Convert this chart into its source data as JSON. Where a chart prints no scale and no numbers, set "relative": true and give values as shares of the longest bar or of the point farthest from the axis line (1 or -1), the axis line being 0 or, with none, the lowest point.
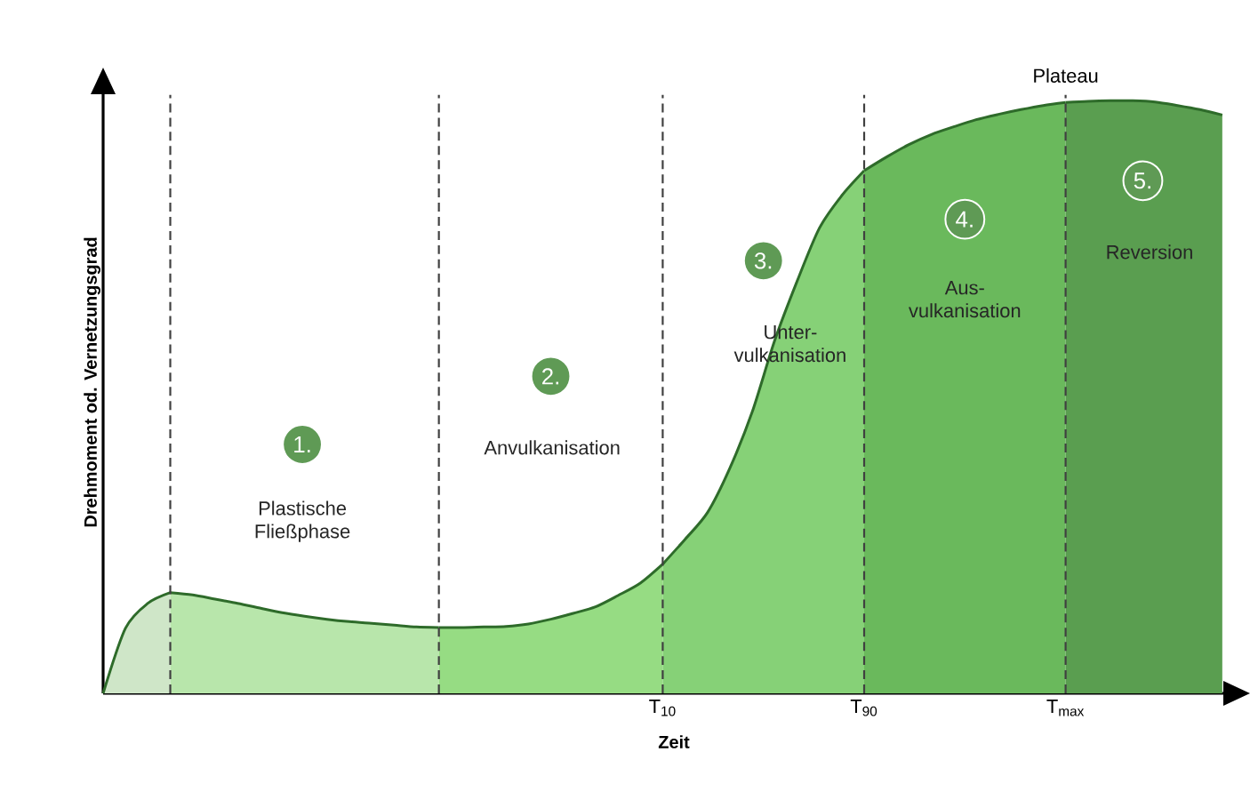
{
  "chart_data": {
    "type": "area",
    "relative": true,
    "xlabel": "Zeit",
    "ylabel": "Drehmoment od. Vernetzungsgrad",
    "categories": [
      null,
      null,
      null,
      null,
      null,
      null,
      null,
      null,
      null,
      null,
      null,
      null,
      null,
      null,
      null,
      null,
      null,
      null,
      null,
      null,
      null,
      null,
      null,
      null,
      null,
      "T$_{10}$",
      null,
      null,
      null,
      null,
      null,
      null,
      null,
      null,
      "T$_{90}$",
      null,
      null,
      null,
      null,
      null,
      null,
      null,
      null,
      "T$_{max}$",
      null,
      null,
      null,
      null,
      null,
      null,
      null
    ],
    "series": [
      {
        "color": "#cfe6c8",
        "values": [
          0,
          0.11,
          0.152,
          0.17,
          null,
          null,
          null,
          null,
          null,
          null,
          null,
          null,
          null,
          null,
          null,
          null,
          null,
          null,
          null,
          null,
          null,
          null,
          null,
          null,
          null,
          null,
          null,
          null,
          null,
          null,
          null,
          null,
          null,
          null,
          null,
          null,
          null,
          null,
          null,
          null,
          null,
          null,
          null,
          null,
          null,
          null,
          null,
          null,
          null,
          null,
          null
        ]
      },
      {
        "color": "#b8e6ab",
        "values": [
          null,
          null,
          null,
          0.17,
          0.166,
          0.159,
          0.152,
          0.144,
          0.136,
          0.13,
          0.125,
          0.121,
          0.118,
          0.115,
          0.112,
          0.111,
          null,
          null,
          null,
          null,
          null,
          null,
          null,
          null,
          null,
          null,
          null,
          null,
          null,
          null,
          null,
          null,
          null,
          null,
          null,
          null,
          null,
          null,
          null,
          null,
          null,
          null,
          null,
          null,
          null,
          null,
          null,
          null,
          null,
          null,
          null
        ]
      },
      {
        "color": "#96dc83",
        "values": [
          null,
          null,
          null,
          null,
          null,
          null,
          null,
          null,
          null,
          null,
          null,
          null,
          null,
          null,
          null,
          0.111,
          0.111,
          0.112,
          0.113,
          0.117,
          0.125,
          0.135,
          0.146,
          0.165,
          0.186,
          0.218,
          null,
          null,
          null,
          null,
          null,
          null,
          null,
          null,
          null,
          null,
          null,
          null,
          null,
          null,
          null,
          null,
          null,
          null,
          null,
          null,
          null,
          null,
          null,
          null,
          null
        ]
      },
      {
        "color": "#86d177",
        "values": [
          null,
          null,
          null,
          null,
          null,
          null,
          null,
          null,
          null,
          null,
          null,
          null,
          null,
          null,
          null,
          null,
          null,
          null,
          null,
          null,
          null,
          null,
          null,
          null,
          null,
          0.218,
          0.26,
          0.305,
          0.38,
          0.475,
          0.595,
          0.695,
          0.785,
          0.84,
          0.882,
          null,
          null,
          null,
          null,
          null,
          null,
          null,
          null,
          null,
          null,
          null,
          null,
          null,
          null,
          null,
          null
        ]
      },
      {
        "color": "#6ab95c",
        "values": [
          null,
          null,
          null,
          null,
          null,
          null,
          null,
          null,
          null,
          null,
          null,
          null,
          null,
          null,
          null,
          null,
          null,
          null,
          null,
          null,
          null,
          null,
          null,
          null,
          null,
          null,
          null,
          null,
          null,
          null,
          null,
          null,
          null,
          null,
          0.882,
          0.905,
          0.926,
          0.943,
          0.956,
          0.968,
          0.977,
          0.985,
          0.992,
          0.997,
          null,
          null,
          null,
          null,
          null,
          null,
          null
        ]
      },
      {
        "color": "#5a9e50",
        "values": [
          null,
          null,
          null,
          null,
          null,
          null,
          null,
          null,
          null,
          null,
          null,
          null,
          null,
          null,
          null,
          null,
          null,
          null,
          null,
          null,
          null,
          null,
          null,
          null,
          null,
          null,
          null,
          null,
          null,
          null,
          null,
          null,
          null,
          null,
          null,
          null,
          null,
          null,
          null,
          null,
          null,
          null,
          null,
          0.997,
          0.999,
          1.0,
          1.0,
          0.998,
          0.992,
          0.985,
          0.976
        ]
      }
    ],
    "grid": "x",
    "annotations": [
      "1.",
      "Plastische Fließphase",
      "2.",
      "Anvulkanisation",
      "3.",
      "Unter-vulkanisation",
      "4.",
      "Aus-vulkanisation",
      "5.",
      "Reversion",
      "Plateau"
    ]
  }
}
